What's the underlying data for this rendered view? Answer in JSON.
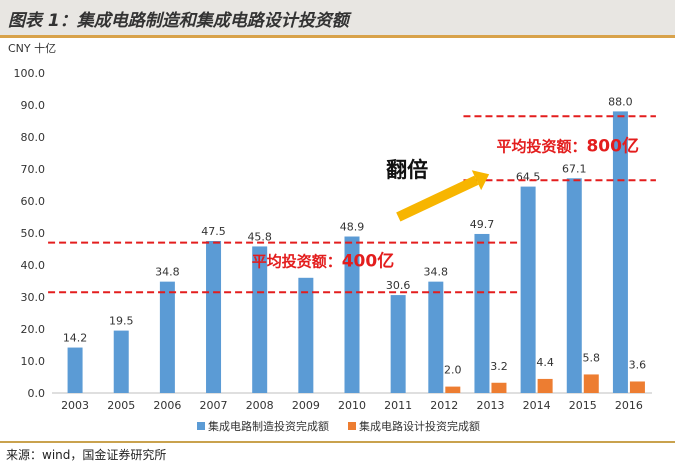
{
  "header": {
    "title": "图表 1：集成电路制造和集成电路设计投资额"
  },
  "source": {
    "text": "来源：wind，国金证券研究所"
  },
  "colors": {
    "manufacturing": "#5b9bd5",
    "design": "#ed7d31",
    "ref_line": "#e31d1d",
    "annotation_text": "#e31d1d",
    "arrow": "#f7b500"
  },
  "chart_data": {
    "type": "bar",
    "title": "集成电路制造和集成电路设计投资额",
    "unit_label": "CNY 十亿",
    "ylim": [
      0,
      100
    ],
    "yticks": [
      0,
      10,
      20,
      30,
      40,
      50,
      60,
      70,
      80,
      90,
      100
    ],
    "ytick_labels": [
      "0.0",
      "10.0",
      "20.0",
      "30.0",
      "40.0",
      "50.0",
      "60.0",
      "70.0",
      "80.0",
      "90.0",
      "100.0"
    ],
    "grid": false,
    "legend_position": "bottom",
    "categories": [
      "2003",
      "2005",
      "2006",
      "2007",
      "2008",
      "2009",
      "2010",
      "2011",
      "2012",
      "2013",
      "2014",
      "2015",
      "2016"
    ],
    "series": [
      {
        "name": "集成电路制造投资完成额",
        "values": [
          14.2,
          19.5,
          34.8,
          47.5,
          45.8,
          36.0,
          48.9,
          30.6,
          34.8,
          49.7,
          64.5,
          67.1,
          88.0
        ],
        "labels": [
          "14.2",
          "19.5",
          "34.8",
          "47.5",
          "45.8",
          "",
          "48.9",
          "30.6",
          "34.8",
          "49.7",
          "64.5",
          "67.1",
          "88.0"
        ]
      },
      {
        "name": "集成电路设计投资完成额",
        "values": [
          null,
          null,
          null,
          null,
          null,
          null,
          null,
          null,
          2.0,
          3.2,
          4.4,
          5.8,
          3.6
        ],
        "labels": [
          "",
          "",
          "",
          "",
          "",
          "",
          "",
          "",
          "2.0",
          "3.2",
          "4.4",
          "5.8",
          "3.6"
        ]
      }
    ],
    "reference_lines": [
      {
        "value": 47,
        "from_index": 0,
        "to_index": 9
      },
      {
        "value": 31.5,
        "from_index": 0,
        "to_index": 9
      },
      {
        "value": 86.5,
        "from_index": 9,
        "to_index": 12
      },
      {
        "value": 66.5,
        "from_index": 9,
        "to_index": 12
      }
    ],
    "annotations": [
      {
        "text": "平均投资额：",
        "value_text": "400亿"
      },
      {
        "text": "平均投资额：",
        "value_text": "800亿"
      },
      {
        "text": "翻倍"
      }
    ]
  }
}
